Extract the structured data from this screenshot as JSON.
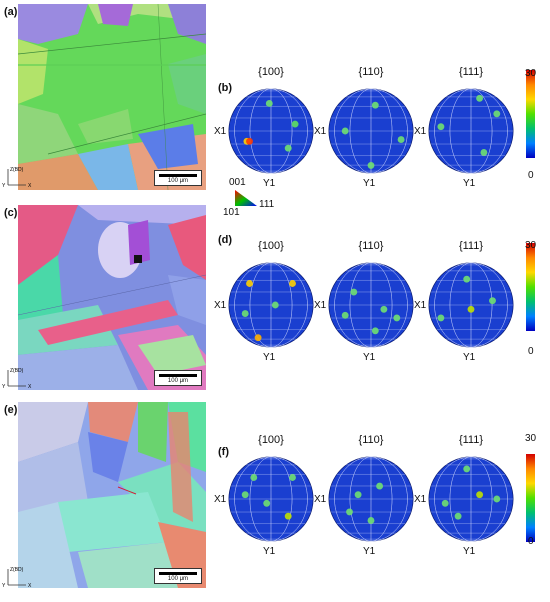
{
  "panels": {
    "a": "(a)",
    "b": "(b)",
    "c": "(c)",
    "d": "(d)",
    "e": "(e)",
    "f": "(f)"
  },
  "maps": [
    {
      "scale": "100 μm"
    },
    {
      "scale": "100 μm"
    },
    {
      "scale": "100 μm"
    }
  ],
  "axes_mini": {
    "z": "Z(BD)",
    "y": "Y",
    "x": "X"
  },
  "pole_figures": {
    "titles": [
      "{100}",
      "{110}",
      "{111}"
    ],
    "x_label": "X1",
    "y_label": "Y1"
  },
  "colorbar": {
    "max": "30",
    "min": "0"
  },
  "ipf_key": {
    "top": "001",
    "bottom_left": "101",
    "bottom_right": "111"
  },
  "colors": {
    "pf_blue": "#1a3fd0",
    "grain_green": "#6fdb5a",
    "grain_blue": "#7a84e0",
    "grain_pink": "#e06090"
  }
}
